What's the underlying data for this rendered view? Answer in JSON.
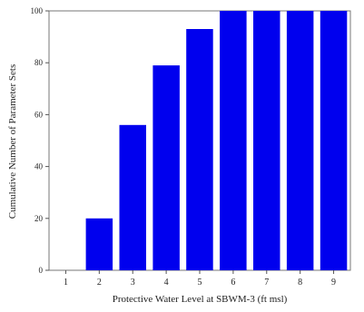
{
  "chart_data": {
    "type": "bar",
    "title": "",
    "xlabel": "Protective Water Level at SBWM-3 (ft msl)",
    "ylabel": "Cumulative Number of Parameter Sets",
    "categories": [
      "1",
      "2",
      "3",
      "4",
      "5",
      "6",
      "7",
      "8",
      "9"
    ],
    "values": [
      0,
      20,
      56,
      79,
      93,
      100,
      100,
      100,
      100
    ],
    "ylim": [
      0,
      100
    ],
    "yticks": [
      "0",
      "20",
      "40",
      "60",
      "80",
      "100"
    ],
    "grid": false,
    "legend": "none",
    "bar_color": "#0000ee"
  }
}
